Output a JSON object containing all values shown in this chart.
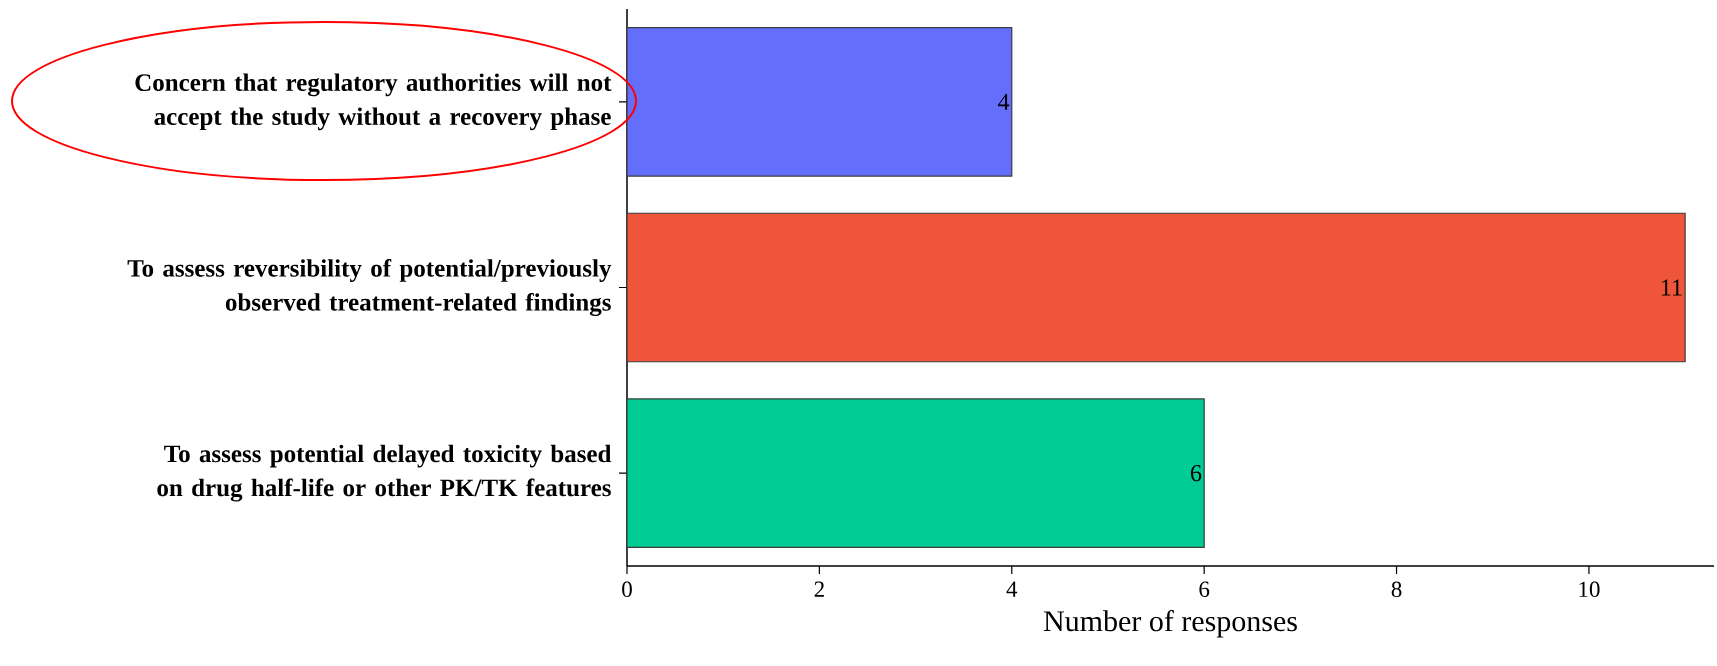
{
  "chart_data": {
    "type": "bar",
    "orientation": "horizontal",
    "xlabel": "Number of responses",
    "categories": [
      "Concern that regulatory authorities will not accept the study without a recovery phase",
      "To assess reversibility of potential/previously observed treatment-related findings",
      "To assess potential delayed toxicity based on drug half-life or other PK/TK features"
    ],
    "values": [
      4,
      11,
      6
    ],
    "colors": [
      "#636efa",
      "#ef553b",
      "#00cc96"
    ],
    "xlim": [
      0,
      11.3
    ],
    "xticks": [
      0,
      2,
      4,
      6,
      8,
      10
    ],
    "data_labels": true
  }
}
